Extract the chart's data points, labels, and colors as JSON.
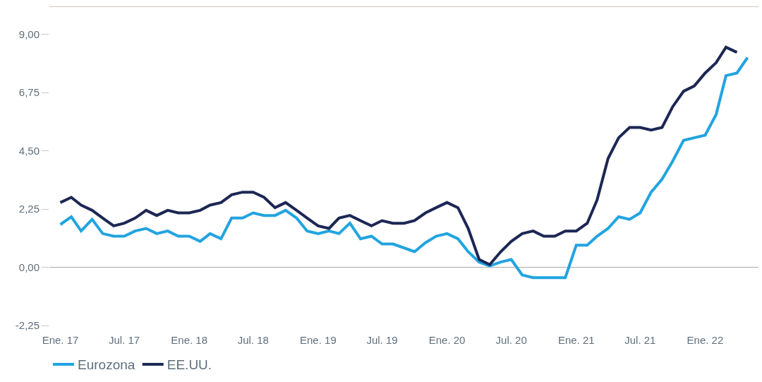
{
  "chart_data": {
    "type": "line",
    "x": [
      "2017-01",
      "2017-02",
      "2017-03",
      "2017-04",
      "2017-05",
      "2017-06",
      "2017-07",
      "2017-08",
      "2017-09",
      "2017-10",
      "2017-11",
      "2017-12",
      "2018-01",
      "2018-02",
      "2018-03",
      "2018-04",
      "2018-05",
      "2018-06",
      "2018-07",
      "2018-08",
      "2018-09",
      "2018-10",
      "2018-11",
      "2018-12",
      "2019-01",
      "2019-02",
      "2019-03",
      "2019-04",
      "2019-05",
      "2019-06",
      "2019-07",
      "2019-08",
      "2019-09",
      "2019-10",
      "2019-11",
      "2019-12",
      "2020-01",
      "2020-02",
      "2020-03",
      "2020-04",
      "2020-05",
      "2020-06",
      "2020-07",
      "2020-08",
      "2020-09",
      "2020-10",
      "2020-11",
      "2020-12",
      "2021-01",
      "2021-02",
      "2021-03",
      "2021-04",
      "2021-05",
      "2021-06",
      "2021-07",
      "2021-08",
      "2021-09",
      "2021-10",
      "2021-11",
      "2021-12",
      "2022-01",
      "2022-02",
      "2022-03",
      "2022-04",
      "2022-05"
    ],
    "series": [
      {
        "name": "Eurozona",
        "color": "#22a4e0",
        "values": [
          1.65,
          1.95,
          1.4,
          1.85,
          1.3,
          1.2,
          1.2,
          1.4,
          1.5,
          1.3,
          1.4,
          1.2,
          1.2,
          1.0,
          1.3,
          1.1,
          1.9,
          1.9,
          2.1,
          2.0,
          2.0,
          2.2,
          1.9,
          1.4,
          1.3,
          1.4,
          1.3,
          1.7,
          1.1,
          1.2,
          0.9,
          0.9,
          0.75,
          0.6,
          0.95,
          1.2,
          1.3,
          1.1,
          0.6,
          0.2,
          0.05,
          0.2,
          0.3,
          -0.3,
          -0.4,
          -0.4,
          -0.4,
          -0.4,
          0.85,
          0.85,
          1.2,
          1.5,
          1.95,
          1.85,
          2.1,
          2.9,
          3.4,
          4.1,
          4.9,
          5.0,
          5.1,
          5.9,
          7.4,
          7.5,
          8.1
        ]
      },
      {
        "name": "EE.UU.",
        "color": "#1c2754",
        "values": [
          2.5,
          2.7,
          2.4,
          2.2,
          1.9,
          1.6,
          1.7,
          1.9,
          2.2,
          2.0,
          2.2,
          2.1,
          2.1,
          2.2,
          2.4,
          2.5,
          2.8,
          2.9,
          2.9,
          2.7,
          2.3,
          2.5,
          2.2,
          1.9,
          1.6,
          1.5,
          1.9,
          2.0,
          1.8,
          1.6,
          1.8,
          1.7,
          1.7,
          1.8,
          2.1,
          2.3,
          2.5,
          2.3,
          1.5,
          0.3,
          0.1,
          0.6,
          1.0,
          1.3,
          1.4,
          1.2,
          1.2,
          1.4,
          1.4,
          1.7,
          2.6,
          4.2,
          5.0,
          5.4,
          5.4,
          5.3,
          5.4,
          6.2,
          6.8,
          7.0,
          7.5,
          7.9,
          8.5,
          8.3,
          null
        ]
      }
    ],
    "xlim": [
      "2016-12-01",
      "2022-06-01"
    ],
    "xticks": [
      {
        "value": "2017-01",
        "label": "Ene. 17"
      },
      {
        "value": "2017-07",
        "label": "Jul. 17"
      },
      {
        "value": "2018-01",
        "label": "Ene. 18"
      },
      {
        "value": "2018-07",
        "label": "Jul. 18"
      },
      {
        "value": "2019-01",
        "label": "Ene. 19"
      },
      {
        "value": "2019-07",
        "label": "Jul. 19"
      },
      {
        "value": "2020-01",
        "label": "Ene. 20"
      },
      {
        "value": "2020-07",
        "label": "Jul. 20"
      },
      {
        "value": "2021-01",
        "label": "Ene. 21"
      },
      {
        "value": "2021-07",
        "label": "Jul. 21"
      },
      {
        "value": "2022-01",
        "label": "Ene. 22"
      }
    ],
    "ylim": [
      -2.25,
      10.05
    ],
    "yticks": [
      {
        "value": -2.25,
        "label": "-2,25"
      },
      {
        "value": 0,
        "label": "0,00"
      },
      {
        "value": 2.25,
        "label": "2,25"
      },
      {
        "value": 4.5,
        "label": "4,50"
      },
      {
        "value": 6.75,
        "label": "6,75"
      },
      {
        "value": 9,
        "label": "9,00"
      }
    ],
    "ref_lines": [
      {
        "axis": "y",
        "value": 0,
        "color": "#a9a9a9"
      }
    ],
    "grid": false,
    "legend": "bottom left",
    "marker": "none",
    "line_style": "solid"
  }
}
